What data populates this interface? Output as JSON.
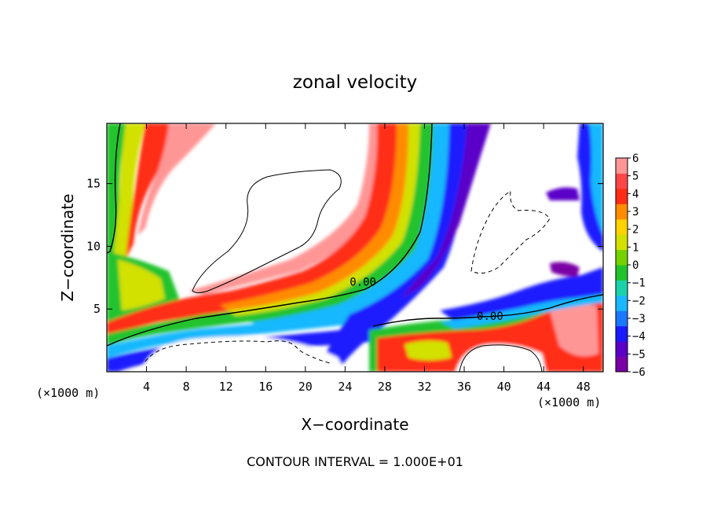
{
  "chart_data": {
    "type": "heatmap",
    "title": "zonal velocity",
    "xlabel": "X−coordinate",
    "ylabel": "Z−coordinate",
    "x_unit_left": "(×1000 m)",
    "x_unit_right": "(×1000 m)",
    "footer": "CONTOUR INTERVAL = 1.000E+01",
    "xlim": [
      0,
      50
    ],
    "ylim": [
      0,
      19.8
    ],
    "x_ticks": [
      4,
      8,
      12,
      16,
      20,
      24,
      28,
      32,
      36,
      40,
      44,
      48
    ],
    "x_tick_labels": [
      "4",
      "8",
      "12",
      "16",
      "20",
      "24",
      "28",
      "32",
      "36",
      "40",
      "44",
      "48"
    ],
    "y_ticks": [
      5,
      10,
      15
    ],
    "y_tick_labels": [
      "5",
      "10",
      "15"
    ],
    "colorbar": {
      "min": -6,
      "max": 6,
      "tick_values": [
        6,
        5,
        4,
        3,
        2,
        1,
        0,
        -1,
        -2,
        -3,
        -4,
        -5,
        -6
      ],
      "tick_labels": [
        "6",
        "5",
        "4",
        "3",
        "2",
        "1",
        "0",
        "−1",
        "−2",
        "−3",
        "−4",
        "−5",
        "−6"
      ],
      "colors": [
        "#7a00a6",
        "#5a00c8",
        "#1a1aff",
        "#1a78ff",
        "#19b8ff",
        "#1ad2aa",
        "#21c32d",
        "#73d200",
        "#d2e100",
        "#ffd200",
        "#ff8c00",
        "#ff2d14",
        "#ff4646",
        "#ff9696"
      ]
    },
    "contour_labels": [
      {
        "text": "0.00",
        "x": 25.8,
        "y": 7.1
      },
      {
        "text": "0.00",
        "x": 38.6,
        "y": 4.4
      }
    ]
  }
}
